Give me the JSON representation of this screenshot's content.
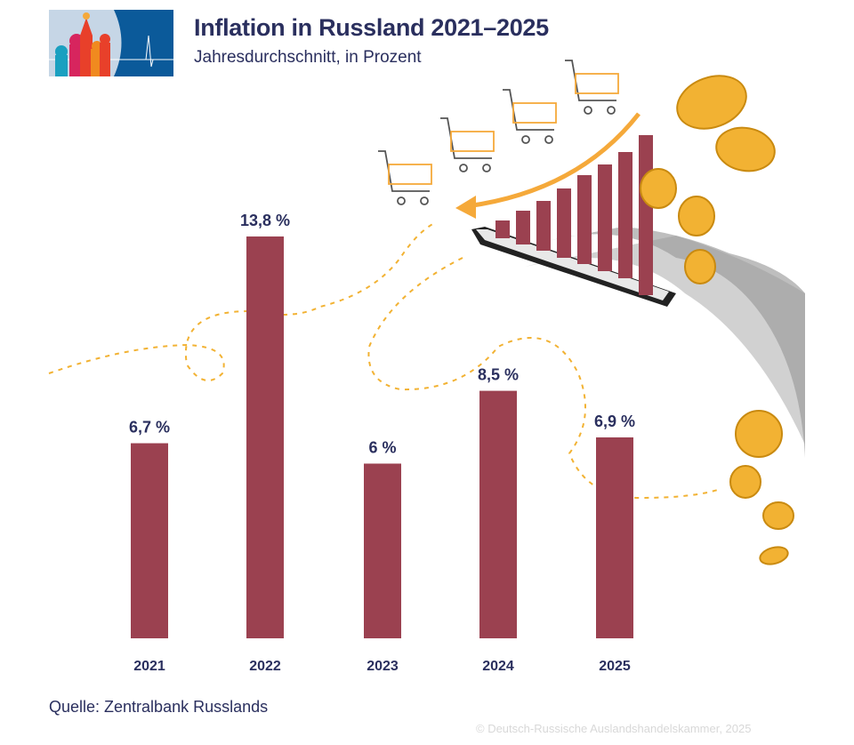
{
  "header": {
    "title": "Inflation in Russland 2021–2025",
    "subtitle": "Jahresdurchschnitt, in Prozent"
  },
  "footer": {
    "source": "Quelle: Zentralbank Russlands",
    "copyright": "© Deutsch-Russische Auslandshandelskammer, 2025"
  },
  "colors": {
    "bar": "#9b4150",
    "text": "#2a2f5e",
    "accent": "#f5a93a",
    "coin": "#f2b233"
  },
  "chart_data": {
    "type": "bar",
    "title": "Inflation in Russland 2021–2025",
    "subtitle": "Jahresdurchschnitt, in Prozent",
    "categories": [
      "2021",
      "2022",
      "2023",
      "2024",
      "2025"
    ],
    "values": [
      6.7,
      13.8,
      6,
      8.5,
      6.9
    ],
    "data_labels": [
      "6,7 %",
      "13,8 %",
      "6 %",
      "8,5 %",
      "6,9 %"
    ],
    "unit": "%",
    "ylim": [
      0,
      13.8
    ],
    "grid": false,
    "legend": "none"
  }
}
